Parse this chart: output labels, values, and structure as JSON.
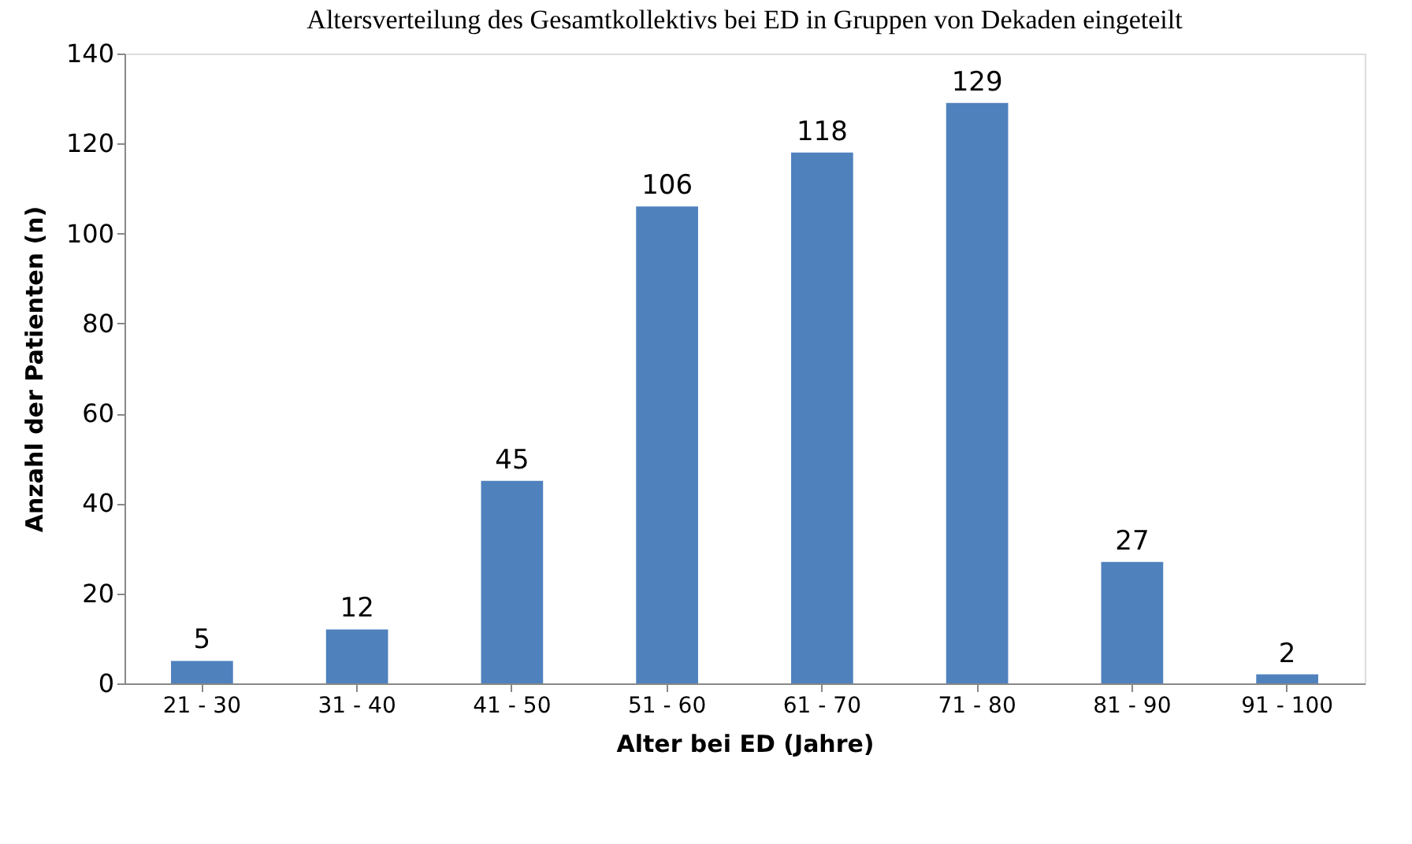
{
  "chart_data": {
    "type": "bar",
    "title": "Altersverteilung des Gesamtkollektivs bei ED in Gruppen von Dekaden eingeteilt",
    "xlabel": "Alter  bei ED (Jahre)",
    "ylabel": "Anzahl der Patienten (n)",
    "categories": [
      "21 - 30",
      "31 - 40",
      "41 - 50",
      "51 - 60",
      "61 - 70",
      "71 - 80",
      "81 - 90",
      "91 - 100"
    ],
    "values": [
      5,
      12,
      45,
      106,
      118,
      129,
      27,
      2
    ],
    "color": "#4f81bd",
    "ylim": [
      0,
      140
    ],
    "yticks": [
      0,
      20,
      40,
      60,
      80,
      100,
      120,
      140
    ],
    "grid": false,
    "data_labels": true
  }
}
